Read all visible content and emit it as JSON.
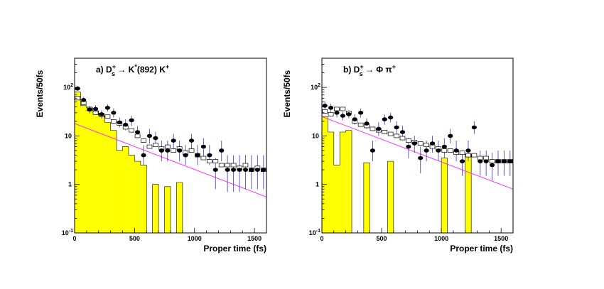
{
  "chart_data": [
    {
      "type": "scatter",
      "panel": "a",
      "title": "a) D_s^+ → K^*(892) K^+",
      "title_parts": {
        "label": "a)",
        "particle": "D",
        "sub": "s",
        "sup": "+",
        "arrow": "→",
        "decay": "K",
        "decay_sup": "*",
        "mass": "(892)",
        "product": "K",
        "product_sup": "+"
      },
      "xlabel": "Proper time (fs)",
      "ylabel": "Events/50fs",
      "xlim": [
        0,
        1600
      ],
      "ylim": [
        0.1,
        400
      ],
      "yscale": "log",
      "xticks": [
        0,
        500,
        1000,
        1500
      ],
      "yticks": [
        {
          "value": 0.1,
          "base": "10",
          "exp": "-1"
        },
        {
          "value": 1,
          "base": "1",
          "exp": ""
        },
        {
          "value": 10,
          "base": "10",
          "exp": ""
        },
        {
          "value": 100,
          "base": "10",
          "exp": "2"
        }
      ],
      "bin_width": 50,
      "colors": {
        "histogram": "#ffff00",
        "histogram_edge": "#000000",
        "fit_line": "#ff33ff",
        "error_bar": "#5544cc",
        "points": "#000000"
      },
      "series": [
        {
          "kind": "histogram",
          "x": [
            25,
            75,
            125,
            175,
            225,
            275,
            325,
            375,
            425,
            475,
            525,
            575,
            625,
            675,
            725,
            775,
            825,
            875,
            925,
            975,
            1025,
            1075,
            1125,
            1175,
            1225,
            1275,
            1325,
            1375,
            1425,
            1475,
            1525,
            1575
          ],
          "y": [
            80,
            42,
            38,
            33,
            26,
            19,
            13,
            5,
            6,
            4,
            3,
            2.5,
            0,
            1,
            0,
            0.9,
            0,
            1.1,
            0,
            0,
            0,
            0,
            0,
            0,
            0,
            0,
            0,
            0,
            0,
            0,
            0,
            0
          ]
        },
        {
          "kind": "points_filled",
          "x": [
            25,
            75,
            125,
            175,
            225,
            275,
            325,
            375,
            425,
            475,
            525,
            575,
            625,
            675,
            725,
            775,
            825,
            875,
            925,
            975,
            1025,
            1075,
            1125,
            1175,
            1225,
            1275,
            1325,
            1375,
            1425,
            1475,
            1525,
            1575
          ],
          "y": [
            95,
            55,
            35,
            36,
            28,
            38,
            30,
            19,
            17,
            21,
            12,
            4,
            10,
            9,
            5,
            5,
            8,
            5,
            4,
            8,
            4,
            6,
            4,
            2,
            5,
            2,
            2,
            2,
            2,
            2,
            2,
            2
          ],
          "err_low": [
            10,
            8,
            6,
            6,
            5,
            6,
            6,
            4,
            4,
            5,
            3,
            1.5,
            3,
            3,
            2,
            2,
            3,
            2,
            1.5,
            3,
            1.5,
            2.5,
            1.5,
            1.2,
            2,
            1.3,
            1.3,
            1.3,
            1.2,
            1.2,
            1.2,
            1.2
          ],
          "err_high": [
            12,
            9,
            7,
            7,
            6,
            7,
            7,
            5,
            5,
            5,
            4,
            2.5,
            4,
            3,
            3,
            3,
            3,
            3,
            2.5,
            3,
            2.5,
            3,
            2.5,
            1.5,
            3,
            2,
            2,
            2,
            2,
            2,
            2,
            2
          ]
        },
        {
          "kind": "points_open",
          "x": [
            25,
            75,
            125,
            175,
            225,
            275,
            325,
            375,
            425,
            475,
            525,
            575,
            625,
            675,
            725,
            775,
            825,
            875,
            925,
            975,
            1025,
            1075,
            1125,
            1175,
            1225,
            1275,
            1325,
            1375,
            1425,
            1475,
            1525,
            1575
          ],
          "y": [
            60,
            48,
            36,
            30,
            27,
            25,
            20,
            18,
            15,
            13,
            10,
            8,
            6,
            6.5,
            5.5,
            6,
            5,
            5.5,
            4.5,
            5,
            4,
            3.5,
            3,
            3,
            2.5,
            2.5,
            2.5,
            2.2,
            2.5,
            2,
            2.2,
            2
          ]
        },
        {
          "kind": "fit_line",
          "x": [
            0,
            1600
          ],
          "y": [
            18,
            0.55
          ]
        }
      ]
    },
    {
      "type": "scatter",
      "panel": "b",
      "title": "b) D_s^+ → Φ π^+",
      "title_parts": {
        "label": "b)",
        "particle": "D",
        "sub": "s",
        "sup": "+",
        "arrow": "→",
        "decay": "Φ",
        "decay_sup": "",
        "mass": "",
        "product": "π",
        "product_sup": "+"
      },
      "xlabel": "Proper time (fs)",
      "ylabel": "Events/50fs",
      "xlim": [
        0,
        1600
      ],
      "ylim": [
        0.1,
        400
      ],
      "yscale": "log",
      "xticks": [
        0,
        500,
        1000,
        1500
      ],
      "yticks": [
        {
          "value": 0.1,
          "base": "10",
          "exp": "-1"
        },
        {
          "value": 1,
          "base": "1",
          "exp": ""
        },
        {
          "value": 10,
          "base": "10",
          "exp": ""
        },
        {
          "value": 100,
          "base": "10",
          "exp": "2"
        }
      ],
      "bin_width": 50,
      "colors": {
        "histogram": "#ffff00",
        "histogram_edge": "#000000",
        "fit_line": "#ff33ff",
        "error_bar": "#5544cc",
        "points": "#000000"
      },
      "series": [
        {
          "kind": "histogram",
          "x": [
            25,
            75,
            125,
            175,
            225,
            275,
            325,
            375,
            425,
            475,
            525,
            575,
            625,
            675,
            725,
            775,
            825,
            875,
            925,
            975,
            1025,
            1075,
            1125,
            1175,
            1225,
            1275,
            1325,
            1375,
            1425,
            1475,
            1525,
            1575
          ],
          "y": [
            25,
            12,
            2.5,
            12,
            13,
            0,
            0,
            2.8,
            0,
            0,
            0,
            3,
            0,
            0,
            0,
            0,
            0,
            0,
            0,
            0,
            3.5,
            0,
            0,
            0,
            4.2,
            0,
            0,
            0,
            0,
            0,
            0,
            0
          ]
        },
        {
          "kind": "points_filled",
          "x": [
            25,
            75,
            125,
            175,
            225,
            275,
            325,
            375,
            425,
            475,
            525,
            575,
            625,
            675,
            725,
            775,
            825,
            875,
            925,
            975,
            1025,
            1075,
            1125,
            1175,
            1225,
            1275,
            1325,
            1375,
            1425,
            1475,
            1525,
            1575
          ],
          "y": [
            42,
            38,
            30,
            26,
            28,
            22,
            30,
            18,
            5,
            14,
            22,
            24,
            15,
            12,
            6,
            7,
            3.5,
            5,
            7,
            5,
            6,
            10,
            5,
            3,
            5,
            15,
            3,
            3,
            2.5,
            3,
            3,
            3
          ],
          "err_low": [
            8,
            7,
            6,
            5,
            5,
            5,
            6,
            4,
            2,
            4,
            5,
            5,
            4,
            3,
            2.5,
            2.5,
            1.8,
            2,
            2.5,
            2,
            2.5,
            3,
            2,
            1.5,
            2,
            4,
            1.5,
            1.5,
            1.3,
            1.5,
            1.5,
            1.5
          ],
          "err_high": [
            9,
            8,
            7,
            6,
            6,
            6,
            7,
            5,
            3,
            5,
            6,
            6,
            5,
            4,
            3,
            3,
            2.5,
            3,
            3,
            3,
            3,
            4,
            3,
            2,
            3,
            5,
            2,
            2,
            2,
            2,
            2,
            2
          ]
        },
        {
          "kind": "points_open",
          "x": [
            25,
            75,
            125,
            175,
            225,
            275,
            325,
            375,
            425,
            475,
            525,
            575,
            625,
            675,
            725,
            775,
            825,
            875,
            925,
            975,
            1025,
            1075,
            1125,
            1175,
            1225,
            1275,
            1325,
            1375,
            1425,
            1475,
            1525,
            1575
          ],
          "y": [
            32,
            28,
            36,
            36,
            30,
            20,
            17,
            16,
            14,
            13,
            12,
            11,
            10,
            9,
            8,
            7.5,
            7,
            6.5,
            6,
            5.5,
            5,
            5,
            4.5,
            4.5,
            4,
            4,
            3.5,
            3.5,
            3,
            3,
            3,
            3
          ]
        },
        {
          "kind": "fit_line",
          "x": [
            0,
            1600
          ],
          "y": [
            25,
            0.8
          ]
        }
      ]
    }
  ]
}
